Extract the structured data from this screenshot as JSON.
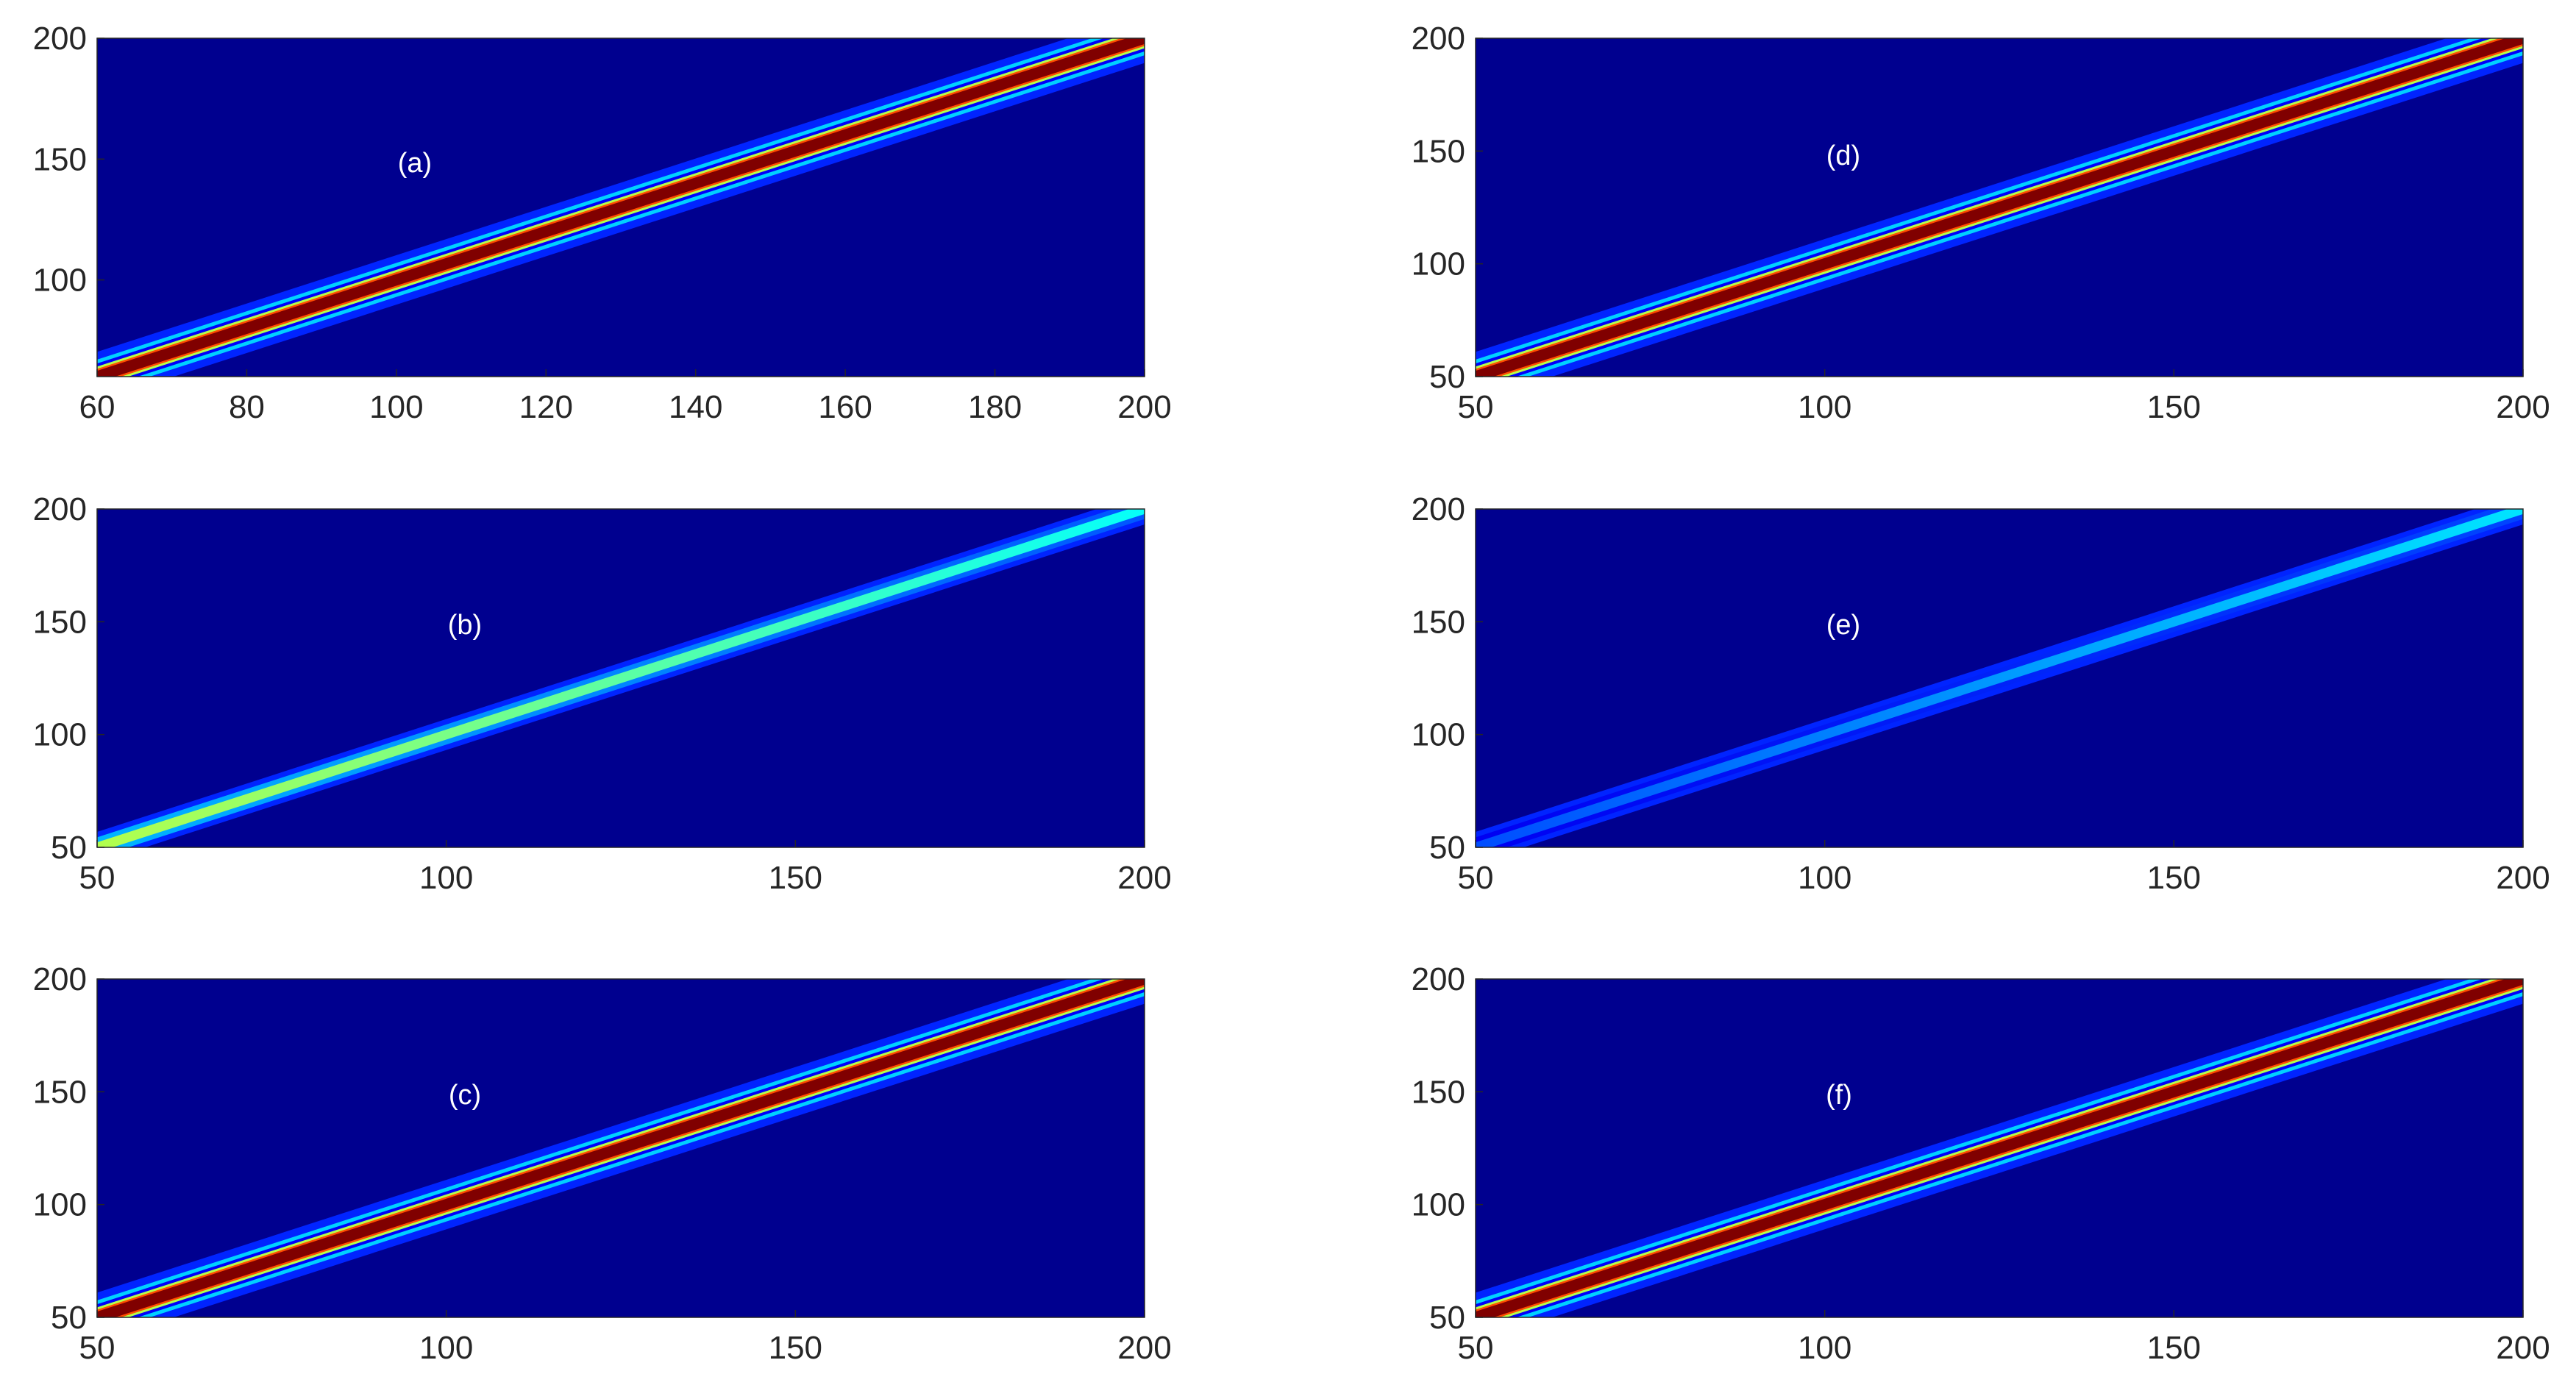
{
  "chart_data": [
    {
      "type": "heatmap",
      "panel_label": "(a)",
      "xlim": [
        60,
        200
      ],
      "ylim": [
        60,
        200
      ],
      "x_ticks": [
        60,
        80,
        100,
        120,
        140,
        160,
        180,
        200
      ],
      "y_ticks": [
        100,
        150,
        200
      ],
      "colormap": "jet",
      "background_color": "#00008f",
      "ridge": {
        "along": "y = x",
        "peak": 1.0,
        "core_color": "#800000",
        "side_bands": true
      }
    },
    {
      "type": "heatmap",
      "panel_label": "(b)",
      "xlim": [
        50,
        200
      ],
      "ylim": [
        50,
        200
      ],
      "x_ticks": [
        50,
        100,
        150,
        200
      ],
      "y_ticks": [
        50,
        100,
        150,
        200
      ],
      "colormap": "jet",
      "background_color": "#00008f",
      "ridge": {
        "along": "y = x",
        "peak_start": 0.55,
        "peak_end": 0.38,
        "side_bands": false
      }
    },
    {
      "type": "heatmap",
      "panel_label": "(c)",
      "xlim": [
        50,
        200
      ],
      "ylim": [
        50,
        200
      ],
      "x_ticks": [
        50,
        100,
        150,
        200
      ],
      "y_ticks": [
        50,
        100,
        150,
        200
      ],
      "colormap": "jet",
      "background_color": "#00008f",
      "ridge": {
        "along": "y = x",
        "peak": 1.0,
        "core_color": "#800000",
        "side_bands": true
      }
    },
    {
      "type": "heatmap",
      "panel_label": "(d)",
      "xlim": [
        50,
        200
      ],
      "ylim": [
        50,
        200
      ],
      "x_ticks": [
        50,
        100,
        150,
        200
      ],
      "y_ticks": [
        50,
        100,
        150,
        200
      ],
      "colormap": "jet",
      "background_color": "#00008f",
      "ridge": {
        "along": "y = x",
        "peak": 1.0,
        "core_color": "#800000",
        "side_bands": true
      }
    },
    {
      "type": "heatmap",
      "panel_label": "(e)",
      "xlim": [
        50,
        200
      ],
      "ylim": [
        50,
        200
      ],
      "x_ticks": [
        50,
        100,
        150,
        200
      ],
      "y_ticks": [
        50,
        100,
        150,
        200
      ],
      "colormap": "jet",
      "background_color": "#00008f",
      "ridge": {
        "along": "y = x",
        "peak_start": 0.2,
        "peak_end": 0.35,
        "side_bands": false
      }
    },
    {
      "type": "heatmap",
      "panel_label": "(f)",
      "xlim": [
        50,
        200
      ],
      "ylim": [
        50,
        200
      ],
      "x_ticks": [
        50,
        100,
        150,
        200
      ],
      "y_ticks": [
        50,
        100,
        150,
        200
      ],
      "colormap": "jet",
      "background_color": "#00008f",
      "ridge": {
        "along": "y = x",
        "peak": 1.0,
        "core_color": "#800000",
        "side_bands": true
      }
    }
  ]
}
